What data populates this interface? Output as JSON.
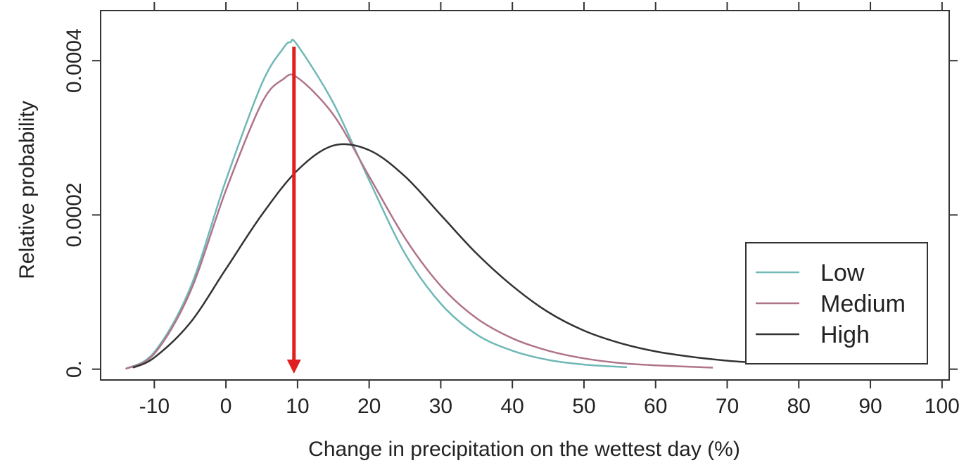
{
  "chart_data": {
    "type": "line",
    "xlabel": "Change in precipitation on the wettest day (%)",
    "ylabel": "Relative probability",
    "xlim": [
      -17.5,
      101
    ],
    "ylim": [
      -1.4e-05,
      0.000465
    ],
    "x_ticks": [
      -10,
      0,
      10,
      20,
      30,
      40,
      50,
      60,
      70,
      80,
      90,
      100
    ],
    "x_tick_labels": [
      "-10",
      "0",
      "10",
      "20",
      "30",
      "40",
      "50",
      "60",
      "70",
      "80",
      "90",
      "100"
    ],
    "y_ticks": [
      0,
      0.0002,
      0.0004
    ],
    "y_tick_labels": [
      "0.",
      "0.0002",
      "0.0004"
    ],
    "legend_position": "bottom-right",
    "series": [
      {
        "name": "Low",
        "color": "#6fb8b6",
        "x": [
          -14,
          -10,
          -5,
          0,
          5,
          8,
          9,
          10,
          15,
          20,
          25,
          30,
          35,
          40,
          45,
          50,
          56
        ],
        "y": [
          4e-07,
          2.2e-05,
          0.000105,
          0.000245,
          0.00037,
          0.000416,
          0.000424,
          0.00042,
          0.000345,
          0.000245,
          0.00015,
          8.5e-05,
          4.5e-05,
          2.4e-05,
          1.2e-05,
          6e-06,
          2.5e-06
        ]
      },
      {
        "name": "Medium",
        "color": "#b0748a",
        "x": [
          -14,
          -10,
          -5,
          0,
          5,
          8,
          10,
          15,
          20,
          25,
          30,
          35,
          40,
          45,
          50,
          55,
          60,
          68
        ],
        "y": [
          4e-07,
          2e-05,
          0.0001,
          0.000232,
          0.000345,
          0.000376,
          0.000378,
          0.00033,
          0.00025,
          0.00017,
          0.000108,
          6.6e-05,
          4e-05,
          2.4e-05,
          1.4e-05,
          8e-06,
          5e-06,
          2e-06
        ]
      },
      {
        "name": "High",
        "color": "#333333",
        "x": [
          -13,
          -10,
          -5,
          0,
          5,
          10,
          15,
          20,
          25,
          30,
          35,
          40,
          45,
          50,
          55,
          60,
          65,
          70,
          73
        ],
        "y": [
          2e-06,
          1.5e-05,
          6e-05,
          0.00013,
          0.0002,
          0.000258,
          0.00029,
          0.000284,
          0.00025,
          0.0002,
          0.00015,
          0.000108,
          7.4e-05,
          5e-05,
          3.4e-05,
          2.3e-05,
          1.6e-05,
          1.1e-05,
          9e-06
        ]
      }
    ],
    "annotations": [
      {
        "type": "arrow",
        "color": "#e02020",
        "x": 9.5,
        "y_start": 0.000418,
        "y_end": -4e-06
      }
    ]
  }
}
